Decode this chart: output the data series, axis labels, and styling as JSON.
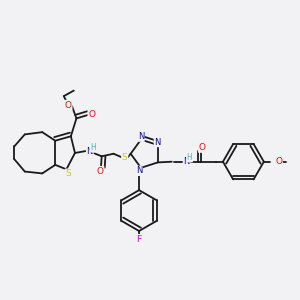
{
  "bg_color": "#f2f2f4",
  "bond_color": "#1a1a1a",
  "atom_colors": {
    "O": "#ff0000",
    "N": "#0000cc",
    "S": "#cccc00",
    "F": "#cc00cc",
    "C": "#1a1a1a",
    "H": "#4db8b8"
  }
}
